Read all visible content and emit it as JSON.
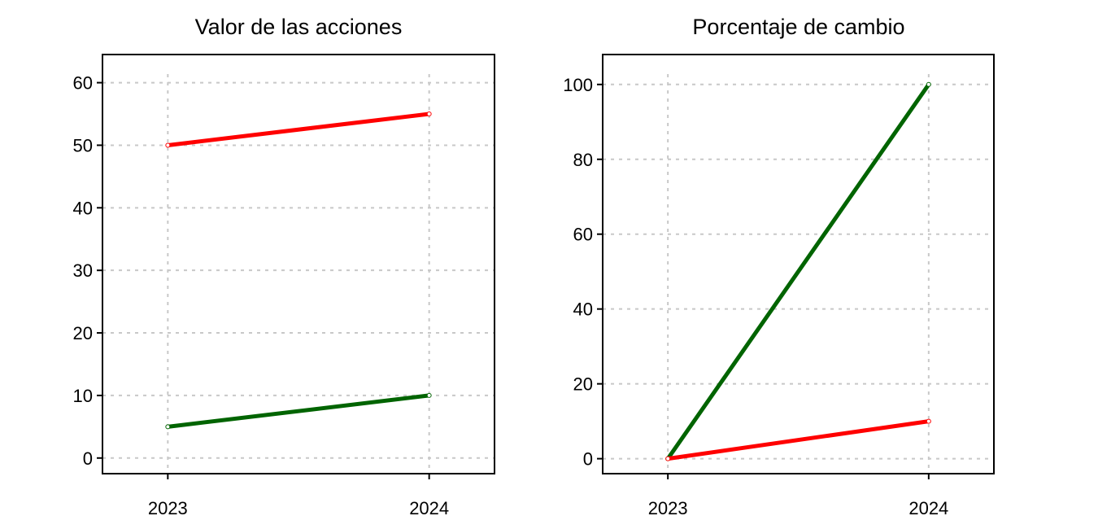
{
  "chart_data": [
    {
      "type": "line",
      "title": "Valor de las acciones",
      "xlabel": "",
      "ylabel": "",
      "x": [
        "2023",
        "2024"
      ],
      "xlim": [
        "2022.75",
        "2024.25"
      ],
      "ylim": [
        -2.5,
        64.5
      ],
      "yticks": [
        0,
        10,
        20,
        30,
        40,
        50,
        60
      ],
      "grid": true,
      "series": [
        {
          "color": "#ff0000",
          "values": [
            50,
            55
          ]
        },
        {
          "color": "#006400",
          "values": [
            5,
            10
          ]
        }
      ]
    },
    {
      "type": "line",
      "title": "Porcentaje de cambio",
      "xlabel": "",
      "ylabel": "",
      "x": [
        "2023",
        "2024"
      ],
      "xlim": [
        "2022.75",
        "2024.25"
      ],
      "ylim": [
        -4,
        108
      ],
      "yticks": [
        0,
        20,
        40,
        60,
        80,
        100
      ],
      "grid": true,
      "series": [
        {
          "color": "#006400",
          "values": [
            0,
            100
          ]
        },
        {
          "color": "#ff0000",
          "values": [
            0,
            10
          ]
        }
      ]
    }
  ]
}
